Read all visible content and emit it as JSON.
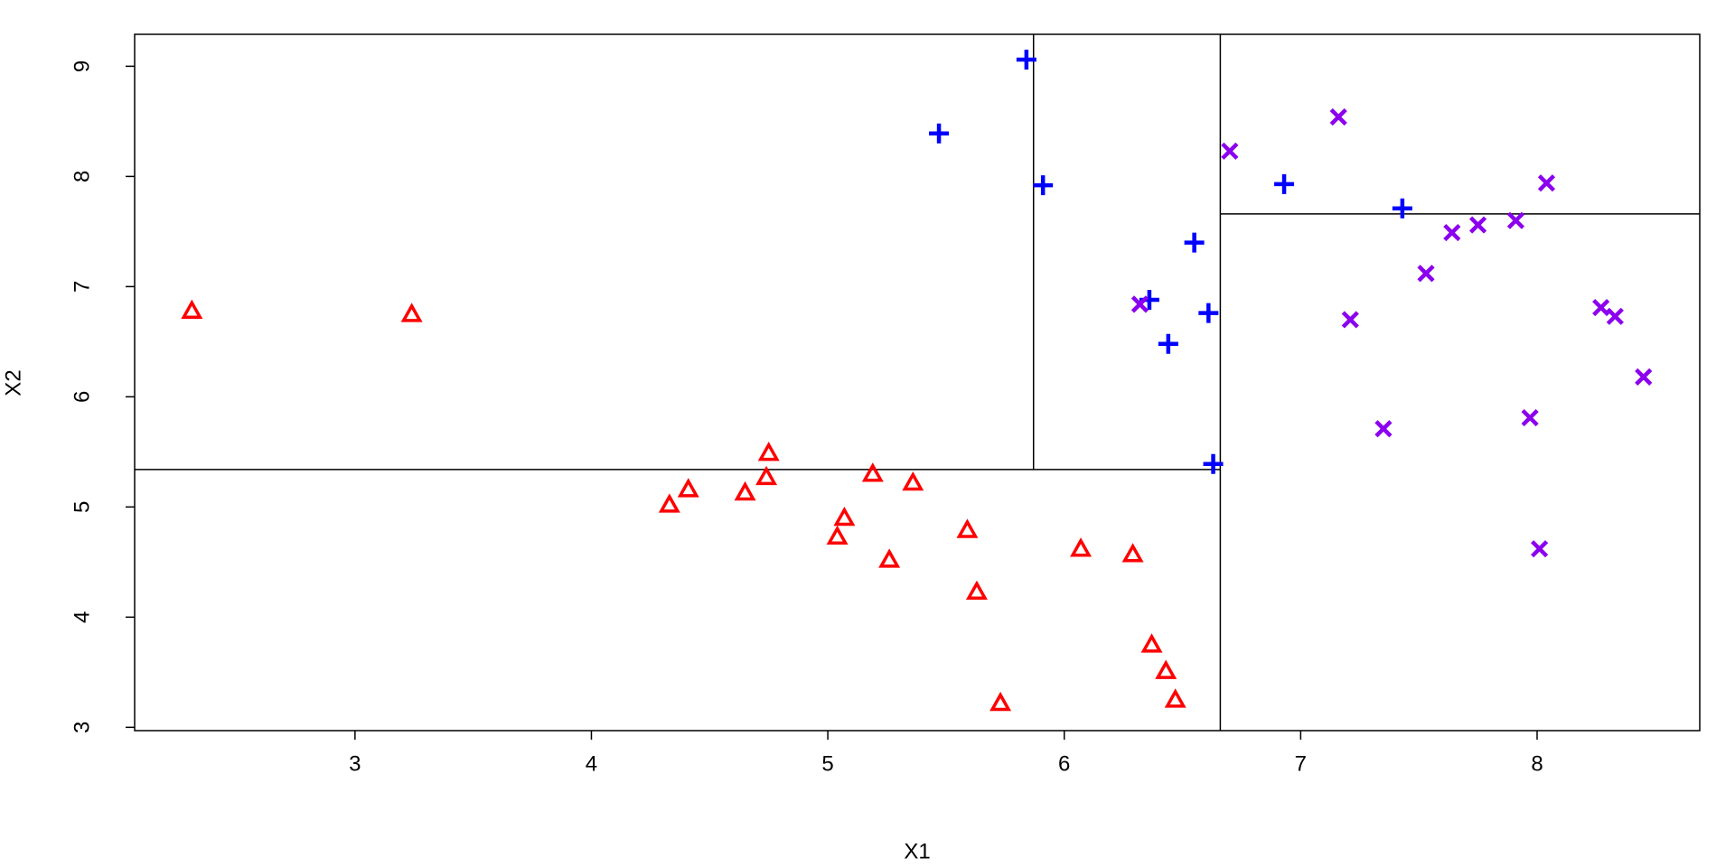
{
  "chart_data": {
    "type": "scatter",
    "xlabel": "X1",
    "ylabel": "X2",
    "xlim": [
      2.068,
      8.688
    ],
    "ylim": [
      2.97,
      9.29
    ],
    "xticks": [
      3,
      4,
      5,
      6,
      7,
      8
    ],
    "yticks": [
      3,
      4,
      5,
      6,
      7,
      8,
      9
    ],
    "segments": [
      {
        "x": [
          5.87,
          5.87
        ],
        "y": [
          5.34,
          9.29
        ]
      },
      {
        "x": [
          6.66,
          6.66
        ],
        "y": [
          2.97,
          9.29
        ]
      },
      {
        "x": [
          2.068,
          6.66
        ],
        "y": [
          5.34,
          5.34
        ]
      },
      {
        "x": [
          6.66,
          8.688
        ],
        "y": [
          7.66,
          7.66
        ]
      }
    ],
    "series": [
      {
        "color": "#ff0000",
        "marker": "triangle",
        "x": [
          2.31,
          3.24,
          4.33,
          4.41,
          4.65,
          4.74,
          4.75,
          5.04,
          5.07,
          5.19,
          5.26,
          5.36,
          5.59,
          5.63,
          5.73,
          6.07,
          6.29,
          6.37,
          6.43,
          6.47
        ],
        "y": [
          6.78,
          6.75,
          5.02,
          5.16,
          5.13,
          5.27,
          5.49,
          4.73,
          4.9,
          5.3,
          4.52,
          5.22,
          4.79,
          4.23,
          3.22,
          4.62,
          4.57,
          3.75,
          3.51,
          3.25
        ]
      },
      {
        "color": "#0000ff",
        "marker": "plus",
        "x": [
          5.47,
          5.84,
          5.91,
          6.36,
          6.44,
          6.55,
          6.61,
          6.63,
          6.93,
          7.43
        ],
        "y": [
          8.39,
          9.06,
          7.92,
          6.88,
          6.48,
          7.4,
          6.76,
          5.39,
          7.93,
          7.71
        ]
      },
      {
        "color": "#8b00ee",
        "marker": "cross",
        "x": [
          6.32,
          6.7,
          7.16,
          7.21,
          7.35,
          7.53,
          7.64,
          7.75,
          7.91,
          7.97,
          8.01,
          8.04,
          8.27,
          8.33,
          8.45
        ],
        "y": [
          6.84,
          8.23,
          8.54,
          6.7,
          5.71,
          7.12,
          7.49,
          7.56,
          7.6,
          5.81,
          4.62,
          7.94,
          6.81,
          6.73,
          6.18
        ]
      }
    ]
  }
}
